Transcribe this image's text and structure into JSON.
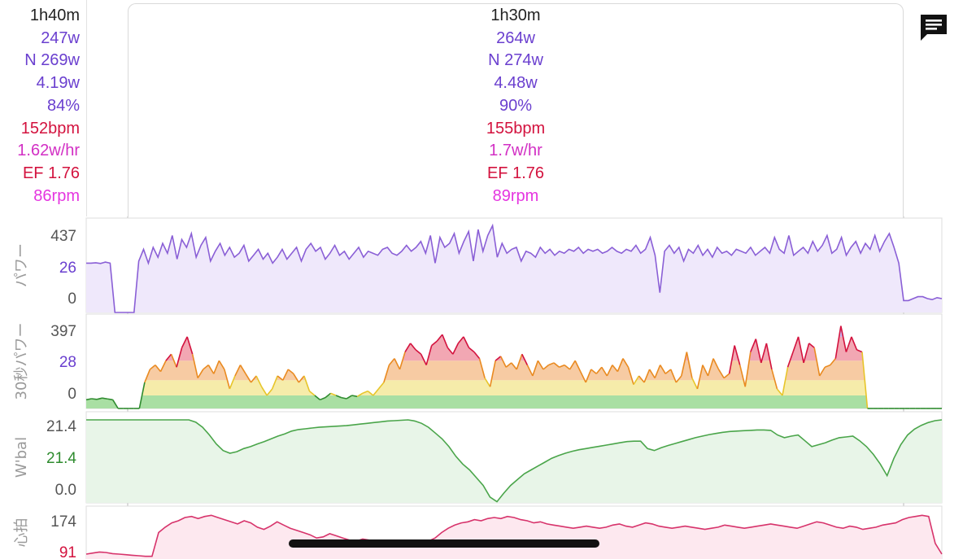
{
  "colors": {
    "time": "#222222",
    "power": "#6a3fcf",
    "np": "#6a3fcf",
    "wkg": "#6a3fcf",
    "intensity": "#6a3fcf",
    "hr": "#d3123e",
    "decoupling": "#d22fc4",
    "ef": "#d3123e",
    "cadence": "#e535e0"
  },
  "summary": {
    "left": {
      "duration": "1h40m",
      "avg_power": "247w",
      "np": "N 269w",
      "wkg": "4.19w",
      "intensity": "84%",
      "hr": "152bpm",
      "decoupling": "1.62w/hr",
      "ef": "EF 1.76",
      "cadence": "86rpm"
    },
    "right": {
      "duration": "1h30m",
      "avg_power": "264w",
      "np": "N 274w",
      "wkg": "4.48w",
      "intensity": "90%",
      "hr": "155bpm",
      "decoupling": "1.7w/hr",
      "ef": "EF 1.76",
      "cadence": "89rpm"
    }
  },
  "comment_icon": "comment-icon",
  "chart_data": [
    {
      "type": "line",
      "ylabel": "パワー",
      "ticks": [
        "437",
        "26",
        "0"
      ],
      "tick_colors": [
        "#555555",
        "#6a3fcf",
        "#555555"
      ],
      "ylim": [
        0,
        437
      ],
      "line_color": "#8a5fd6",
      "fill_color": "#efe8fb",
      "values": [
        250,
        250,
        252,
        248,
        255,
        250,
        0,
        0,
        0,
        0,
        0,
        260,
        320,
        250,
        330,
        280,
        350,
        300,
        390,
        270,
        370,
        330,
        400,
        280,
        340,
        380,
        260,
        310,
        350,
        290,
        330,
        280,
        300,
        340,
        260,
        290,
        320,
        270,
        300,
        250,
        280,
        320,
        270,
        300,
        330,
        260,
        320,
        350,
        310,
        330,
        270,
        300,
        340,
        290,
        310,
        270,
        300,
        330,
        280,
        310,
        300,
        290,
        320,
        330,
        300,
        290,
        310,
        340,
        310,
        330,
        360,
        300,
        390,
        250,
        380,
        330,
        350,
        400,
        300,
        360,
        410,
        260,
        420,
        310,
        390,
        440,
        280,
        350,
        300,
        320,
        330,
        260,
        310,
        300,
        280,
        330,
        300,
        320,
        290,
        310,
        300,
        320,
        310,
        330,
        300,
        320,
        310,
        320,
        300,
        310,
        330,
        310,
        300,
        320,
        310,
        340,
        300,
        320,
        380,
        290,
        100,
        310,
        340,
        300,
        330,
        260,
        320,
        300,
        340,
        290,
        320,
        280,
        330,
        300,
        310,
        290,
        320,
        310,
        300,
        330,
        290,
        310,
        330,
        300,
        380,
        320,
        300,
        390,
        290,
        310,
        330,
        300,
        360,
        310,
        340,
        390,
        300,
        320,
        380,
        290,
        330,
        360,
        300,
        350,
        320,
        390,
        310,
        360,
        400,
        330,
        250,
        60,
        60,
        70,
        80,
        80,
        70,
        65,
        75,
        70
      ]
    },
    {
      "type": "area",
      "ylabel": "30秒パワー",
      "ticks": [
        "397",
        "28",
        "0"
      ],
      "tick_colors": [
        "#555555",
        "#6a3fcf",
        "#555555"
      ],
      "ylim": [
        0,
        397
      ],
      "bands": [
        {
          "from": 0,
          "to": 60,
          "color": "#a9dfa3"
        },
        {
          "from": 60,
          "to": 130,
          "color": "#f6ecaa"
        },
        {
          "from": 130,
          "to": 220,
          "color": "#f7cba3"
        },
        {
          "from": 220,
          "to": 330,
          "color": "#f2a7b3"
        },
        {
          "from": 330,
          "to": 397,
          "color": "#c8b4ec"
        }
      ],
      "values": [
        40,
        45,
        42,
        48,
        44,
        40,
        0,
        0,
        0,
        0,
        0,
        120,
        180,
        200,
        170,
        220,
        250,
        190,
        280,
        330,
        250,
        140,
        180,
        200,
        160,
        220,
        180,
        90,
        150,
        200,
        160,
        120,
        150,
        100,
        60,
        90,
        150,
        130,
        180,
        160,
        120,
        150,
        80,
        60,
        40,
        50,
        70,
        60,
        50,
        45,
        60,
        55,
        70,
        80,
        60,
        90,
        120,
        200,
        230,
        180,
        260,
        300,
        270,
        250,
        200,
        290,
        310,
        340,
        280,
        250,
        300,
        330,
        280,
        260,
        230,
        140,
        100,
        220,
        240,
        190,
        210,
        180,
        250,
        200,
        150,
        220,
        180,
        200,
        210,
        190,
        200,
        180,
        220,
        170,
        120,
        180,
        160,
        190,
        150,
        200,
        170,
        230,
        190,
        110,
        150,
        120,
        180,
        140,
        200,
        160,
        180,
        120,
        150,
        260,
        140,
        90,
        200,
        150,
        230,
        180,
        140,
        160,
        290,
        200,
        100,
        260,
        320,
        210,
        300,
        180,
        90,
        60,
        190,
        260,
        330,
        210,
        300,
        280,
        150,
        190,
        200,
        230,
        380,
        260,
        330,
        270,
        260,
        0,
        0,
        0,
        0,
        0,
        0,
        0,
        0,
        0,
        0,
        0,
        0,
        0,
        0,
        0
      ]
    },
    {
      "type": "area",
      "ylabel": "W'bal",
      "ticks": [
        "21.4",
        "21.4",
        "0.0"
      ],
      "tick_colors": [
        "#555555",
        "#2e8b2e",
        "#555555"
      ],
      "ylim": [
        0,
        21.4
      ],
      "line_color": "#4aa54a",
      "fill_color": "#e8f5e8",
      "values": [
        21.4,
        21.4,
        21.4,
        21.4,
        21.4,
        21.4,
        21.4,
        21.4,
        21.4,
        21.4,
        21.4,
        21.4,
        21.4,
        21.4,
        21.4,
        21.4,
        20.8,
        19.5,
        17.5,
        15.2,
        13.5,
        12.8,
        13.2,
        14.0,
        14.5,
        15.2,
        15.8,
        16.5,
        17.2,
        17.8,
        18.5,
        18.9,
        19.1,
        19.3,
        19.5,
        19.6,
        19.7,
        19.8,
        19.9,
        20.1,
        20.3,
        20.5,
        20.7,
        20.9,
        21.1,
        21.2,
        21.3,
        21.4,
        21.1,
        20.5,
        19.5,
        18.0,
        16.5,
        14.5,
        12.0,
        10.0,
        8.5,
        6.5,
        4.5,
        1.5,
        0.3,
        2.5,
        4.5,
        6.0,
        7.5,
        8.5,
        9.5,
        10.5,
        11.5,
        12.2,
        12.8,
        13.3,
        13.7,
        14.0,
        14.3,
        14.6,
        14.9,
        15.2,
        15.5,
        15.8,
        15.9,
        15.9,
        14.0,
        13.5,
        14.2,
        14.8,
        15.3,
        15.8,
        16.3,
        16.8,
        17.2,
        17.6,
        17.9,
        18.2,
        18.4,
        18.5,
        18.6,
        18.7,
        18.8,
        18.8,
        18.7,
        17.5,
        16.8,
        17.2,
        17.5,
        16.0,
        14.5,
        15.0,
        15.5,
        16.2,
        16.8,
        17.0,
        17.2,
        16.0,
        14.5,
        12.5,
        10.0,
        7.0,
        11.5,
        15.0,
        17.5,
        19.0,
        20.0,
        20.7,
        21.2,
        21.4
      ]
    },
    {
      "type": "line",
      "ylabel": "心拍",
      "ticks": [
        "174",
        "91"
      ],
      "tick_colors": [
        "#555555",
        "#d3123e"
      ],
      "ylim": [
        91,
        174
      ],
      "line_color": "#d7336b",
      "fill_color": "#fde8ef",
      "values": [
        100,
        102,
        104,
        103,
        101,
        100,
        99,
        98,
        97,
        96,
        96,
        140,
        150,
        158,
        162,
        168,
        170,
        166,
        170,
        172,
        168,
        164,
        160,
        156,
        162,
        158,
        150,
        146,
        152,
        160,
        154,
        148,
        144,
        140,
        136,
        130,
        132,
        138,
        134,
        130,
        126,
        124,
        128,
        126,
        122,
        120,
        124,
        126,
        122,
        120,
        118,
        122,
        124,
        130,
        140,
        148,
        154,
        158,
        160,
        164,
        162,
        166,
        168,
        166,
        170,
        168,
        164,
        162,
        158,
        160,
        156,
        154,
        152,
        150,
        148,
        150,
        152,
        150,
        148,
        150,
        154,
        156,
        152,
        150,
        154,
        158,
        156,
        152,
        150,
        148,
        150,
        152,
        150,
        148,
        146,
        148,
        150,
        154,
        152,
        150,
        148,
        150,
        152,
        154,
        156,
        154,
        152,
        150,
        148,
        152,
        156,
        160,
        158,
        154,
        150,
        148,
        152,
        150,
        146,
        148,
        150,
        154,
        156,
        158,
        164,
        168,
        170,
        172,
        170,
        120,
        100
      ]
    }
  ]
}
